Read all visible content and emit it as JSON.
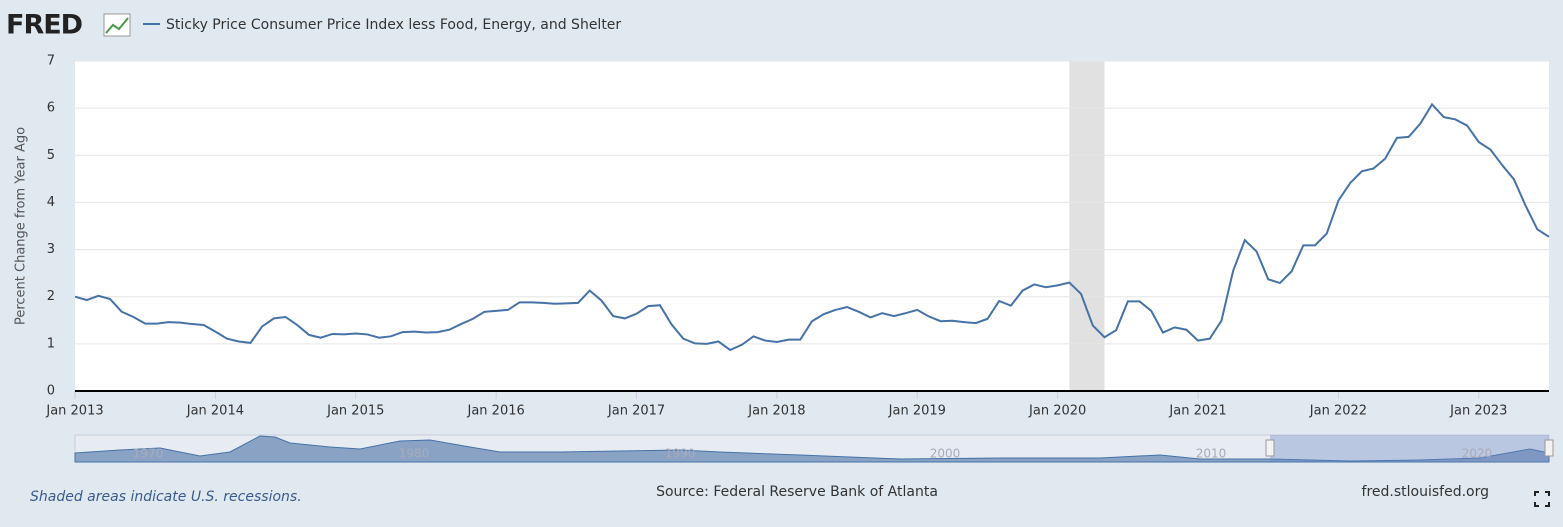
{
  "logo": "FRED",
  "chart_data": {
    "type": "line",
    "y_label": "Percent Change from Year Ago",
    "x": [
      "2013-01",
      "2013-02",
      "2013-03",
      "2013-04",
      "2013-05",
      "2013-06",
      "2013-07",
      "2013-08",
      "2013-09",
      "2013-10",
      "2013-11",
      "2013-12",
      "2014-01",
      "2014-02",
      "2014-03",
      "2014-04",
      "2014-05",
      "2014-06",
      "2014-07",
      "2014-08",
      "2014-09",
      "2014-10",
      "2014-11",
      "2014-12",
      "2015-01",
      "2015-02",
      "2015-03",
      "2015-04",
      "2015-05",
      "2015-06",
      "2015-07",
      "2015-08",
      "2015-09",
      "2015-10",
      "2015-11",
      "2015-12",
      "2016-01",
      "2016-02",
      "2016-03",
      "2016-04",
      "2016-05",
      "2016-06",
      "2016-07",
      "2016-08",
      "2016-09",
      "2016-10",
      "2016-11",
      "2016-12",
      "2017-01",
      "2017-02",
      "2017-03",
      "2017-04",
      "2017-05",
      "2017-06",
      "2017-07",
      "2017-08",
      "2017-09",
      "2017-10",
      "2017-11",
      "2017-12",
      "2018-01",
      "2018-02",
      "2018-03",
      "2018-04",
      "2018-05",
      "2018-06",
      "2018-07",
      "2018-08",
      "2018-09",
      "2018-10",
      "2018-11",
      "2018-12",
      "2019-01",
      "2019-02",
      "2019-03",
      "2019-04",
      "2019-05",
      "2019-06",
      "2019-07",
      "2019-08",
      "2019-09",
      "2019-10",
      "2019-11",
      "2019-12",
      "2020-01",
      "2020-02",
      "2020-03",
      "2020-04",
      "2020-05",
      "2020-06",
      "2020-07",
      "2020-08",
      "2020-09",
      "2020-10",
      "2020-11",
      "2020-12",
      "2021-01",
      "2021-02",
      "2021-03",
      "2021-04",
      "2021-05",
      "2021-06",
      "2021-07",
      "2021-08",
      "2021-09",
      "2021-10",
      "2021-11",
      "2021-12",
      "2022-01",
      "2022-02",
      "2022-03",
      "2022-04",
      "2022-05",
      "2022-06",
      "2022-07",
      "2022-08",
      "2022-09",
      "2022-10",
      "2022-11",
      "2022-12",
      "2023-01",
      "2023-02",
      "2023-03",
      "2023-04",
      "2023-05",
      "2023-06",
      "2023-07"
    ],
    "series": [
      {
        "name": "Sticky Price Consumer Price Index less Food, Energy, and Shelter",
        "color": "#4572a7",
        "values": [
          2.0,
          1.93,
          2.02,
          1.95,
          1.68,
          1.57,
          1.43,
          1.43,
          1.46,
          1.45,
          1.42,
          1.4,
          1.26,
          1.11,
          1.05,
          1.02,
          1.37,
          1.54,
          1.57,
          1.4,
          1.19,
          1.13,
          1.21,
          1.2,
          1.22,
          1.2,
          1.13,
          1.16,
          1.25,
          1.26,
          1.24,
          1.25,
          1.3,
          1.42,
          1.53,
          1.68,
          1.7,
          1.72,
          1.88,
          1.88,
          1.87,
          1.85,
          1.86,
          1.87,
          2.13,
          1.92,
          1.59,
          1.54,
          1.64,
          1.8,
          1.82,
          1.41,
          1.11,
          1.01,
          1.0,
          1.05,
          0.87,
          0.98,
          1.16,
          1.07,
          1.04,
          1.09,
          1.09,
          1.48,
          1.63,
          1.72,
          1.78,
          1.68,
          1.56,
          1.65,
          1.59,
          1.65,
          1.72,
          1.58,
          1.48,
          1.49,
          1.46,
          1.44,
          1.53,
          1.91,
          1.81,
          2.13,
          2.26,
          2.2,
          2.24,
          2.3,
          2.06,
          1.39,
          1.14,
          1.29,
          1.9,
          1.9,
          1.7,
          1.24,
          1.35,
          1.3,
          1.07,
          1.11,
          1.49,
          2.55,
          3.2,
          2.96,
          2.37,
          2.29,
          2.54,
          3.09,
          3.09,
          3.34,
          4.04,
          4.41,
          4.66,
          4.72,
          4.93,
          5.37,
          5.39,
          5.67,
          6.08,
          5.81,
          5.76,
          5.63,
          5.28,
          5.12,
          4.79,
          4.49,
          3.93,
          3.43,
          3.27
        ]
      }
    ],
    "xlim": [
      "2013-01",
      "2023-07"
    ],
    "xticks": [
      {
        "value": "2013-01",
        "label": "Jan 2013"
      },
      {
        "value": "2014-01",
        "label": "Jan 2014"
      },
      {
        "value": "2015-01",
        "label": "Jan 2015"
      },
      {
        "value": "2016-01",
        "label": "Jan 2016"
      },
      {
        "value": "2017-01",
        "label": "Jan 2017"
      },
      {
        "value": "2018-01",
        "label": "Jan 2018"
      },
      {
        "value": "2019-01",
        "label": "Jan 2019"
      },
      {
        "value": "2020-01",
        "label": "Jan 2020"
      },
      {
        "value": "2021-01",
        "label": "Jan 2021"
      },
      {
        "value": "2022-01",
        "label": "Jan 2022"
      },
      {
        "value": "2023-01",
        "label": "Jan 2023"
      }
    ],
    "ylim": [
      0,
      7
    ],
    "yticks": [
      0,
      1,
      2,
      3,
      4,
      5,
      6,
      7
    ],
    "grid": true,
    "recessions": [
      {
        "start": "2020-02",
        "end": "2020-04"
      }
    ],
    "recession_note": "Shaded areas indicate U.S. recessions.",
    "source": "Source: Federal Reserve Bank of Atlanta",
    "site": "fred.stlouisfed.org",
    "navigator_labels": [
      "1970",
      "1980",
      "1990",
      "2000",
      "2010",
      "2020"
    ]
  }
}
